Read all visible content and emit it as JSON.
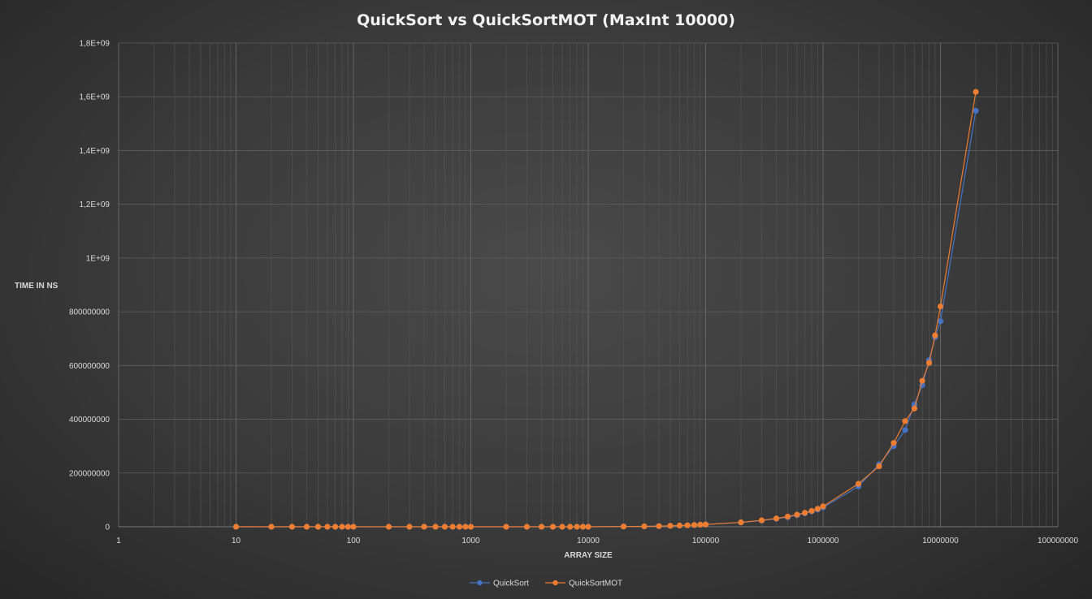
{
  "chart_data": {
    "type": "line",
    "title": "QuickSort  vs  QuickSortMOT  (MaxInt  10000)",
    "xlabel": "ARRAY SIZE",
    "ylabel": "TIME IN NS",
    "xscale": "log",
    "xlim": [
      1,
      100000000
    ],
    "ylim": [
      0,
      1800000000
    ],
    "x_tick_labels": [
      "1",
      "10",
      "100",
      "1000",
      "10000",
      "100000",
      "1000000",
      "10000000",
      "100000000"
    ],
    "y_tick_labels": [
      "0",
      "200000000",
      "400000000",
      "600000000",
      "800000000",
      "1E+09",
      "1,2E+09",
      "1,4E+09",
      "1,6E+09",
      "1,8E+09"
    ],
    "grid": true,
    "legend": "bottom",
    "x": [
      10,
      20,
      30,
      40,
      50,
      60,
      70,
      80,
      90,
      100,
      200,
      300,
      400,
      500,
      600,
      700,
      800,
      900,
      1000,
      2000,
      3000,
      4000,
      5000,
      6000,
      7000,
      8000,
      9000,
      10000,
      20000,
      30000,
      40000,
      50000,
      60000,
      70000,
      80000,
      90000,
      100000,
      200000,
      300000,
      400000,
      500000,
      600000,
      700000,
      800000,
      900000,
      1000000,
      2000000,
      3000000,
      4000000,
      5000000,
      6000000,
      7000000,
      8000000,
      9000000,
      10000000,
      20000000
    ],
    "series": [
      {
        "name": "QuickSort",
        "color": "#4472c4",
        "values": [
          0,
          0,
          0,
          0,
          0,
          0,
          0,
          0,
          0,
          0,
          0,
          0,
          0,
          0,
          0,
          0,
          0,
          0,
          0,
          0,
          0,
          0,
          0,
          0,
          0,
          0,
          0,
          0,
          1000000,
          1500000,
          2500000,
          3500000,
          4500000,
          5500000,
          6500000,
          7500000,
          8500000,
          16000000,
          23000000,
          30000000,
          36000000,
          43000000,
          50000000,
          57000000,
          64000000,
          72000000,
          150000000,
          232000000,
          300000000,
          360000000,
          455000000,
          527000000,
          620000000,
          705000000,
          765000000,
          1548000000
        ]
      },
      {
        "name": "QuickSortMOT",
        "color": "#ed7d31",
        "values": [
          0,
          0,
          0,
          0,
          0,
          0,
          0,
          0,
          0,
          0,
          0,
          0,
          0,
          0,
          0,
          0,
          0,
          0,
          0,
          0,
          0,
          0,
          0,
          0,
          0,
          0,
          0,
          0,
          1000000,
          1500000,
          2500000,
          3500000,
          4500000,
          5500000,
          6500000,
          7500000,
          8500000,
          16500000,
          24000000,
          31000000,
          38000000,
          45000000,
          52000000,
          59000000,
          67000000,
          76000000,
          160000000,
          225000000,
          312000000,
          393000000,
          440000000,
          543000000,
          610000000,
          712000000,
          820000000,
          1618000000
        ]
      }
    ]
  }
}
